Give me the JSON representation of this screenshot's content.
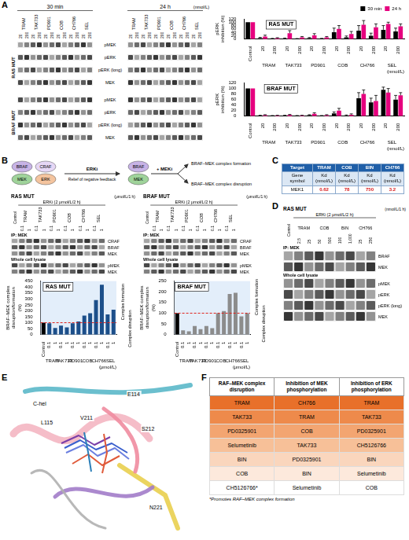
{
  "panel_labels": [
    "A",
    "B",
    "C",
    "D",
    "E",
    "F"
  ],
  "A_blot": {
    "time_points": [
      "30 min",
      "24 h"
    ],
    "drugs": [
      "TRAM",
      "TAK733",
      "PD901",
      "COB",
      "CH766",
      "SEL"
    ],
    "concentrations": [
      "20",
      "200"
    ],
    "unit": "(nmol/L)",
    "groups": [
      {
        "name": "RAS MUT",
        "rows": [
          "pMEK",
          "pERK",
          "pERK (long)",
          "MEK"
        ]
      },
      {
        "name": "BRAF MUT",
        "rows": [
          "pMEK",
          "pERK",
          "pERK (long)",
          "MEK"
        ]
      }
    ]
  },
  "chart_data": [
    {
      "type": "bar",
      "title": "RAS MUT",
      "categories": [
        "Control",
        "20",
        "200",
        "20",
        "200",
        "20",
        "200",
        "20",
        "200",
        "20",
        "200",
        "20",
        "200"
      ],
      "category_groups": [
        "TRAM",
        "TAK733",
        "PD901",
        "COB",
        "CH766",
        "SEL"
      ],
      "x_label": "(nmol/L)",
      "y_label": "pERK inhibition (%)",
      "ylim": [
        0,
        120
      ],
      "yticks": [
        0,
        20,
        40,
        60,
        80,
        100,
        120
      ],
      "legend": "top-right",
      "series": [
        {
          "name": "30 min",
          "color": "#000000",
          "values": [
            100,
            5,
            2,
            3,
            2,
            5,
            2,
            40,
            10,
            50,
            20,
            55,
            45
          ],
          "errors": [
            0,
            5,
            2,
            3,
            1,
            4,
            2,
            25,
            8,
            30,
            15,
            25,
            20
          ]
        },
        {
          "name": "24 h",
          "color": "#e6007e",
          "values": [
            100,
            15,
            5,
            35,
            10,
            22,
            10,
            60,
            30,
            85,
            70,
            90,
            75
          ],
          "errors": [
            0,
            8,
            3,
            15,
            5,
            10,
            5,
            20,
            15,
            25,
            20,
            10,
            15
          ]
        }
      ]
    },
    {
      "type": "bar",
      "title": "BRAF MUT",
      "categories": [
        "Control",
        "20",
        "200",
        "20",
        "200",
        "20",
        "200",
        "20",
        "200",
        "20",
        "200",
        "20",
        "200"
      ],
      "category_groups": [
        "TRAM",
        "TAK733",
        "PD901",
        "COB",
        "CH766",
        "SEL"
      ],
      "x_label": "(nmol/L)",
      "y_label": "pERK inhibition (%)",
      "ylim": [
        0,
        120
      ],
      "yticks": [
        0,
        20,
        40,
        60,
        80,
        100,
        120
      ],
      "series": [
        {
          "color": "#000000",
          "values": [
            100,
            2,
            1,
            2,
            1,
            3,
            1,
            10,
            2,
            65,
            50,
            95,
            60
          ],
          "errors": [
            0,
            1,
            1,
            1,
            1,
            2,
            1,
            5,
            2,
            20,
            15,
            10,
            15
          ]
        },
        {
          "color": "#e6007e",
          "values": [
            100,
            3,
            2,
            4,
            2,
            8,
            3,
            20,
            5,
            80,
            55,
            85,
            75
          ],
          "errors": [
            0,
            2,
            1,
            2,
            1,
            4,
            2,
            8,
            3,
            15,
            20,
            15,
            10
          ]
        }
      ]
    },
    {
      "type": "bar",
      "title": "RAS MUT",
      "categories": [
        "Control",
        "0.1",
        "1",
        "0.1",
        "1",
        "0.1",
        "1",
        "0.1",
        "1",
        "0.1",
        "1",
        "0.1",
        "1"
      ],
      "category_groups": [
        "TRAM",
        "TAK733",
        "PD901",
        "COB",
        "CH766",
        "SEL"
      ],
      "x_label": "(μmol/L)",
      "y_label": "BRAF–MEK complex disruption/formation (%)",
      "ylim": [
        0,
        450
      ],
      "yticks": [
        0,
        50,
        100,
        150,
        200,
        250,
        300,
        350,
        400,
        450
      ],
      "values": [
        100,
        95,
        55,
        75,
        60,
        95,
        110,
        160,
        180,
        290,
        420,
        170,
        210
      ],
      "colors": [
        "#000000",
        "#1c4f8a",
        "#1c4f8a",
        "#1c4f8a",
        "#1c4f8a",
        "#1c4f8a",
        "#1c4f8a",
        "#1c4f8a",
        "#1c4f8a",
        "#1c4f8a",
        "#1c4f8a",
        "#1c4f8a",
        "#1c4f8a"
      ],
      "reference_line": 100,
      "annotations": [
        "Complex formation",
        "Complex disruption"
      ]
    },
    {
      "type": "bar",
      "title": "BRAF MUT",
      "categories": [
        "Control",
        "0.1",
        "1",
        "0.1",
        "1",
        "0.1",
        "1",
        "0.1",
        "1",
        "0.1",
        "1",
        "0.1",
        "1"
      ],
      "category_groups": [
        "TRAM",
        "TAK733",
        "PD901",
        "COB",
        "CH766",
        "SEL"
      ],
      "x_label": "(μmol/L)",
      "y_label": "BRAF–MEK complex disruption/formation (%)",
      "ylim": [
        0,
        250
      ],
      "yticks": [
        0,
        50,
        100,
        150,
        200,
        250
      ],
      "values": [
        100,
        20,
        15,
        40,
        25,
        40,
        30,
        100,
        110,
        190,
        195,
        85,
        100
      ],
      "colors": [
        "#000000",
        "#8c8c8c",
        "#8c8c8c",
        "#8c8c8c",
        "#8c8c8c",
        "#8c8c8c",
        "#8c8c8c",
        "#8c8c8c",
        "#8c8c8c",
        "#8c8c8c",
        "#8c8c8c",
        "#8c8c8c",
        "#8c8c8c"
      ],
      "reference_line": 100,
      "annotations": [
        "Complex formation",
        "Complex disruption"
      ]
    }
  ],
  "B_diagram": {
    "braf": "BRAF",
    "mek": "MEK",
    "craf": "CRAF",
    "erk": "ERK",
    "erki": "ERKi",
    "feedback": "Relief of negative feedback",
    "meki": "+ MEKi",
    "formation": "BRAF–MEK complex formation",
    "disruption": "BRAF–MEK complex disruption"
  },
  "B_blot": {
    "panels": [
      "RAS MUT",
      "BRAF MUT"
    ],
    "treatment": "ERKi (2 μmol/L/2 h)",
    "control": "Control",
    "drugs": [
      "TRAM",
      "TAK733",
      "PD901",
      "COB",
      "CH766",
      "SEL"
    ],
    "concentrations": [
      "0.1",
      "1"
    ],
    "unit": "(μmol/L/1 h)",
    "sections": [
      {
        "name": "IP: MEK",
        "rows": [
          "CRAF",
          "BRAF",
          "MEK"
        ]
      },
      {
        "name": "Whole cell lysate",
        "rows": [
          "pMEK",
          "MEK"
        ]
      }
    ]
  },
  "C_table": {
    "rows": [
      [
        "Target",
        "TRAM",
        "COB",
        "BIN",
        "CH766"
      ],
      [
        "Gene symbol",
        "Kd (nmol/L)",
        "Kd (nmol/L)",
        "Kd (nmol/L)",
        "Kd (nmol/L)"
      ],
      [
        "MEK1",
        "0.62",
        "78",
        "750",
        "3.2"
      ]
    ]
  },
  "D_blot": {
    "title": "RAS MUT",
    "treatment": "ERKi (2 μmol/L/2 h)",
    "control": "Control",
    "drugs": [
      {
        "name": "TRAM",
        "concentrations": [
          "2.5",
          "25"
        ]
      },
      {
        "name": "COB",
        "concentrations": [
          "50",
          "500"
        ]
      },
      {
        "name": "BIN",
        "concentrations": [
          "100",
          "1,000"
        ]
      },
      {
        "name": "CH766",
        "concentrations": [
          "25",
          "250"
        ]
      }
    ],
    "unit": "(nmol/L/1 h)",
    "sections": [
      {
        "name": "IP: MEK",
        "rows": [
          "BRAF",
          "MEK"
        ]
      },
      {
        "name": "Whole cell lysate",
        "rows": [
          "pMEK",
          "pERK",
          "pERK (long)",
          "MEK"
        ]
      }
    ]
  },
  "E_structure": {
    "labels": [
      "C-hel",
      "E114",
      "L115",
      "V211",
      "S212",
      "N221"
    ]
  },
  "F_table": {
    "header": [
      "RAF–MEK complex disruption",
      "Inhibition of MEK phosphorylation",
      "Inhibition of ERK phosphorylation"
    ],
    "rows": [
      [
        "TRAM",
        "CH766",
        "TRAM"
      ],
      [
        "TAK733",
        "TRAM",
        "TAK733"
      ],
      [
        "PD0325901",
        "COB",
        "PD0325901"
      ],
      [
        "Selumetinib",
        "TAK733",
        "CH5126766"
      ],
      [
        "BIN",
        "PD0325901",
        "BIN"
      ],
      [
        "COB",
        "BIN",
        "Selumetinib"
      ],
      [
        "CH5126766*",
        "Selumetinib",
        "COB"
      ]
    ],
    "footnote": "*Promotes RAF–MEK complex formation"
  }
}
